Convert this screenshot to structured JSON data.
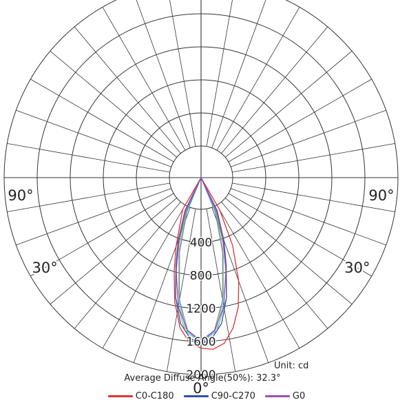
{
  "chart_data": {
    "type": "polar",
    "unit_label": "Unit: cd",
    "summary_label": "Average Diffuse Angle(50%): 32.3°",
    "radial_ticks": [
      "400",
      "800",
      "1200",
      "1600",
      "2000"
    ],
    "radial_max": 2000,
    "angle_labels": [
      {
        "text": "90°",
        "angle": -90
      },
      {
        "text": "90°",
        "angle": 90
      },
      {
        "text": "30°",
        "angle": -60
      },
      {
        "text": "30°",
        "angle": 60
      },
      {
        "text": "0°",
        "angle": 0
      }
    ],
    "series": [
      {
        "name": "C0-C180",
        "color": "#e03030",
        "angles": [
          -30,
          -20,
          -16,
          -12,
          -8,
          -4,
          0,
          4,
          8,
          12,
          16,
          20,
          25,
          30
        ],
        "values": [
          60,
          500,
          800,
          1150,
          1450,
          1620,
          1680,
          1700,
          1640,
          1480,
          1250,
          950,
          520,
          70
        ]
      },
      {
        "name": "C90-C270",
        "color": "#2b4fb0",
        "angles": [
          -26,
          -20,
          -16,
          -12,
          -8,
          -4,
          0,
          4,
          8,
          12,
          16,
          20,
          26
        ],
        "values": [
          60,
          420,
          720,
          1100,
          1400,
          1560,
          1640,
          1560,
          1400,
          1100,
          720,
          420,
          60
        ]
      },
      {
        "name": "G0",
        "color": "#9b4fb0",
        "angles": [
          -25,
          -20,
          -15,
          -10,
          -5,
          0,
          5,
          10,
          15,
          20,
          25
        ],
        "values": [
          60,
          380,
          780,
          1200,
          1480,
          1600,
          1480,
          1200,
          780,
          380,
          60
        ]
      }
    ],
    "extra_traces": [
      {
        "color": "#3cb878",
        "angles": [
          -24,
          -18,
          -12,
          -6,
          0,
          6,
          12,
          18,
          24
        ],
        "values": [
          70,
          550,
          1100,
          1480,
          1610,
          1480,
          1100,
          550,
          70
        ]
      },
      {
        "color": "#5fc9c9",
        "angles": [
          -22,
          -16,
          -10,
          -5,
          0,
          5,
          10,
          16,
          22
        ],
        "values": [
          70,
          600,
          1150,
          1500,
          1620,
          1500,
          1150,
          600,
          70
        ]
      },
      {
        "color": "#c9b43c",
        "angles": [
          -24,
          -17,
          -11,
          -6,
          0,
          6,
          11,
          17,
          24
        ],
        "values": [
          60,
          520,
          1050,
          1450,
          1600,
          1450,
          1050,
          520,
          60
        ]
      },
      {
        "color": "#4f86c9",
        "angles": [
          -23,
          -16,
          -10,
          -5,
          0,
          5,
          10,
          16,
          23
        ],
        "values": [
          60,
          560,
          1120,
          1470,
          1590,
          1470,
          1120,
          560,
          60
        ]
      }
    ]
  }
}
